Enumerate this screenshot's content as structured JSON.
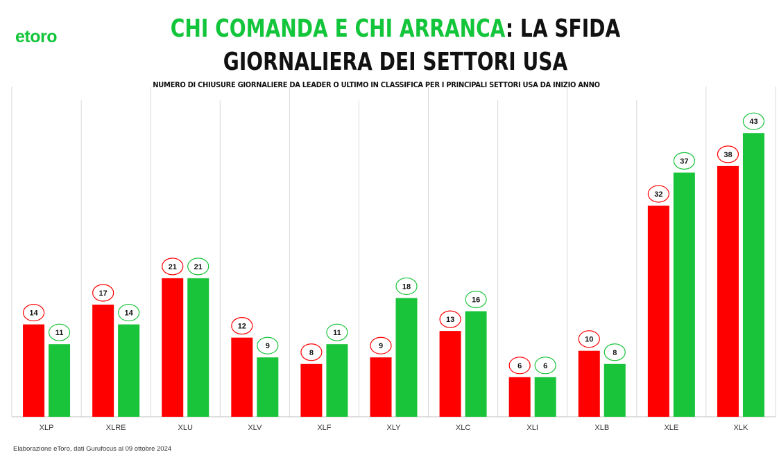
{
  "logo": {
    "text": "etoro",
    "color": "#13c53a"
  },
  "title": {
    "highlight": "CHI COMANDA E CHI ARRANCA",
    "rest": ": LA SFIDA GIORNALIERA DEI SETTORI USA"
  },
  "subtitle": "NUMERO DI CHIUSURE GIORNALIERE DA LEADER O ULTIMO IN CLASSIFICA PER I PRINCIPALI SETTORI USA DA INIZIO ANNO",
  "footer": "Elaborazione eToro, dati Gurufocus al 09 ottobre 2024",
  "colors": {
    "red": "#ff0000",
    "green": "#19c43a"
  },
  "chart_data": {
    "type": "bar",
    "categories": [
      "XLP",
      "XLRE",
      "XLU",
      "XLV",
      "XLF",
      "XLY",
      "XLC",
      "XLI",
      "XLB",
      "XLE",
      "XLK"
    ],
    "series": [
      {
        "color": "#ff0000",
        "values": [
          14,
          17,
          21,
          12,
          8,
          9,
          13,
          6,
          10,
          32,
          38
        ]
      },
      {
        "color": "#19c43a",
        "values": [
          11,
          14,
          21,
          9,
          11,
          18,
          16,
          6,
          8,
          37,
          43
        ]
      }
    ],
    "ylim": [
      0,
      45
    ],
    "grid": "vertical category separators",
    "legend": "none",
    "data_labels": "circled values above bars"
  }
}
